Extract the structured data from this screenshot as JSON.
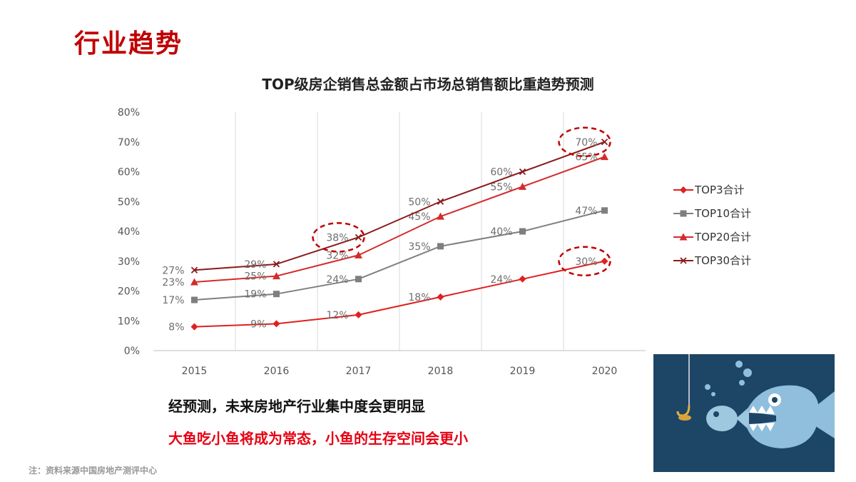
{
  "page": {
    "title": "行业趋势",
    "conclusion_1": "经预测，未来房地产行业集中度会更明显",
    "conclusion_2": "大鱼吃小鱼将成为常态，小鱼的生存空间会更小",
    "source_note": "注：资料来源中国房地产测评中心"
  },
  "chart_data": {
    "type": "line",
    "title": "TOP级房企销售总金额占市场总销售额比重趋势预测",
    "categories": [
      "2015",
      "2016",
      "2017",
      "2018",
      "2019",
      "2020"
    ],
    "ylim": [
      0,
      80
    ],
    "yticks": [
      "0%",
      "10%",
      "20%",
      "30%",
      "40%",
      "50%",
      "60%",
      "70%",
      "80%"
    ],
    "grid": "vertical",
    "legend_position": "right",
    "series": [
      {
        "name": "TOP3合计",
        "marker": "diamond",
        "color": "#e02020",
        "values": [
          8,
          9,
          12,
          18,
          24,
          30
        ],
        "labels": [
          "8%",
          "9%",
          "12%",
          "18%",
          "24%",
          "30%"
        ]
      },
      {
        "name": "TOP10合计",
        "marker": "square",
        "color": "#7f7f7f",
        "values": [
          17,
          19,
          24,
          35,
          40,
          47
        ],
        "labels": [
          "17%",
          "19%",
          "24%",
          "35%",
          "40%",
          "47%"
        ]
      },
      {
        "name": "TOP20合计",
        "marker": "triangle",
        "color": "#d42b2b",
        "values": [
          23,
          25,
          32,
          45,
          55,
          65
        ],
        "labels": [
          "23%",
          "25%",
          "32%",
          "45%",
          "55%",
          "65%"
        ]
      },
      {
        "name": "TOP30合计",
        "marker": "x",
        "color": "#8b1a1a",
        "values": [
          27,
          29,
          38,
          50,
          60,
          70
        ],
        "labels": [
          "27%",
          "29%",
          "38%",
          "50%",
          "60%",
          "70%"
        ]
      }
    ],
    "highlights": [
      {
        "series": 3,
        "index": 2
      },
      {
        "series": 3,
        "index": 5
      },
      {
        "series": 0,
        "index": 5
      }
    ]
  },
  "colors": {
    "title_red": "#c00000",
    "emphasis_red": "#e60012",
    "fish_background": "#1d4566"
  }
}
